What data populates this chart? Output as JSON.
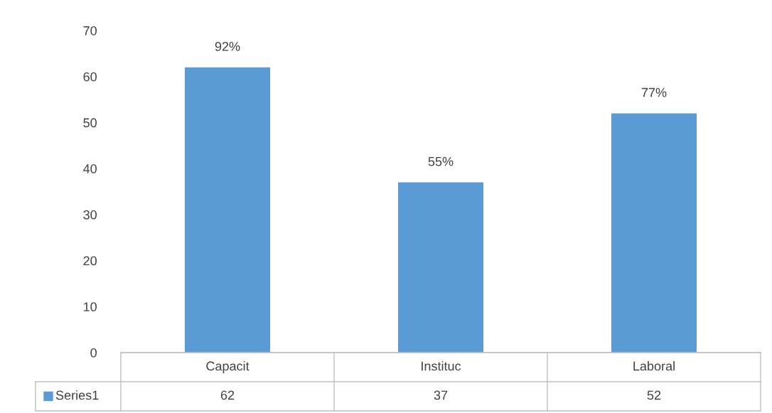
{
  "chart_data": {
    "type": "bar",
    "categories": [
      "Capacit",
      "Instituc",
      "Laboral"
    ],
    "series": [
      {
        "name": "Series1",
        "color": "#5b9bd5",
        "values": [
          62,
          37,
          52
        ],
        "value_labels": [
          "62",
          "37",
          "52"
        ]
      }
    ],
    "annotations": [
      {
        "text": "92%",
        "x": "Capacit",
        "y": 62
      },
      {
        "text": "55%",
        "x": "Instituc",
        "y": 37
      },
      {
        "text": "77%",
        "x": "Laboral",
        "y": 52
      }
    ],
    "ylim": [
      0,
      70
    ],
    "yticks": [
      0,
      10,
      20,
      30,
      40,
      50,
      60,
      70
    ],
    "grid": false,
    "legend": "bottom"
  }
}
